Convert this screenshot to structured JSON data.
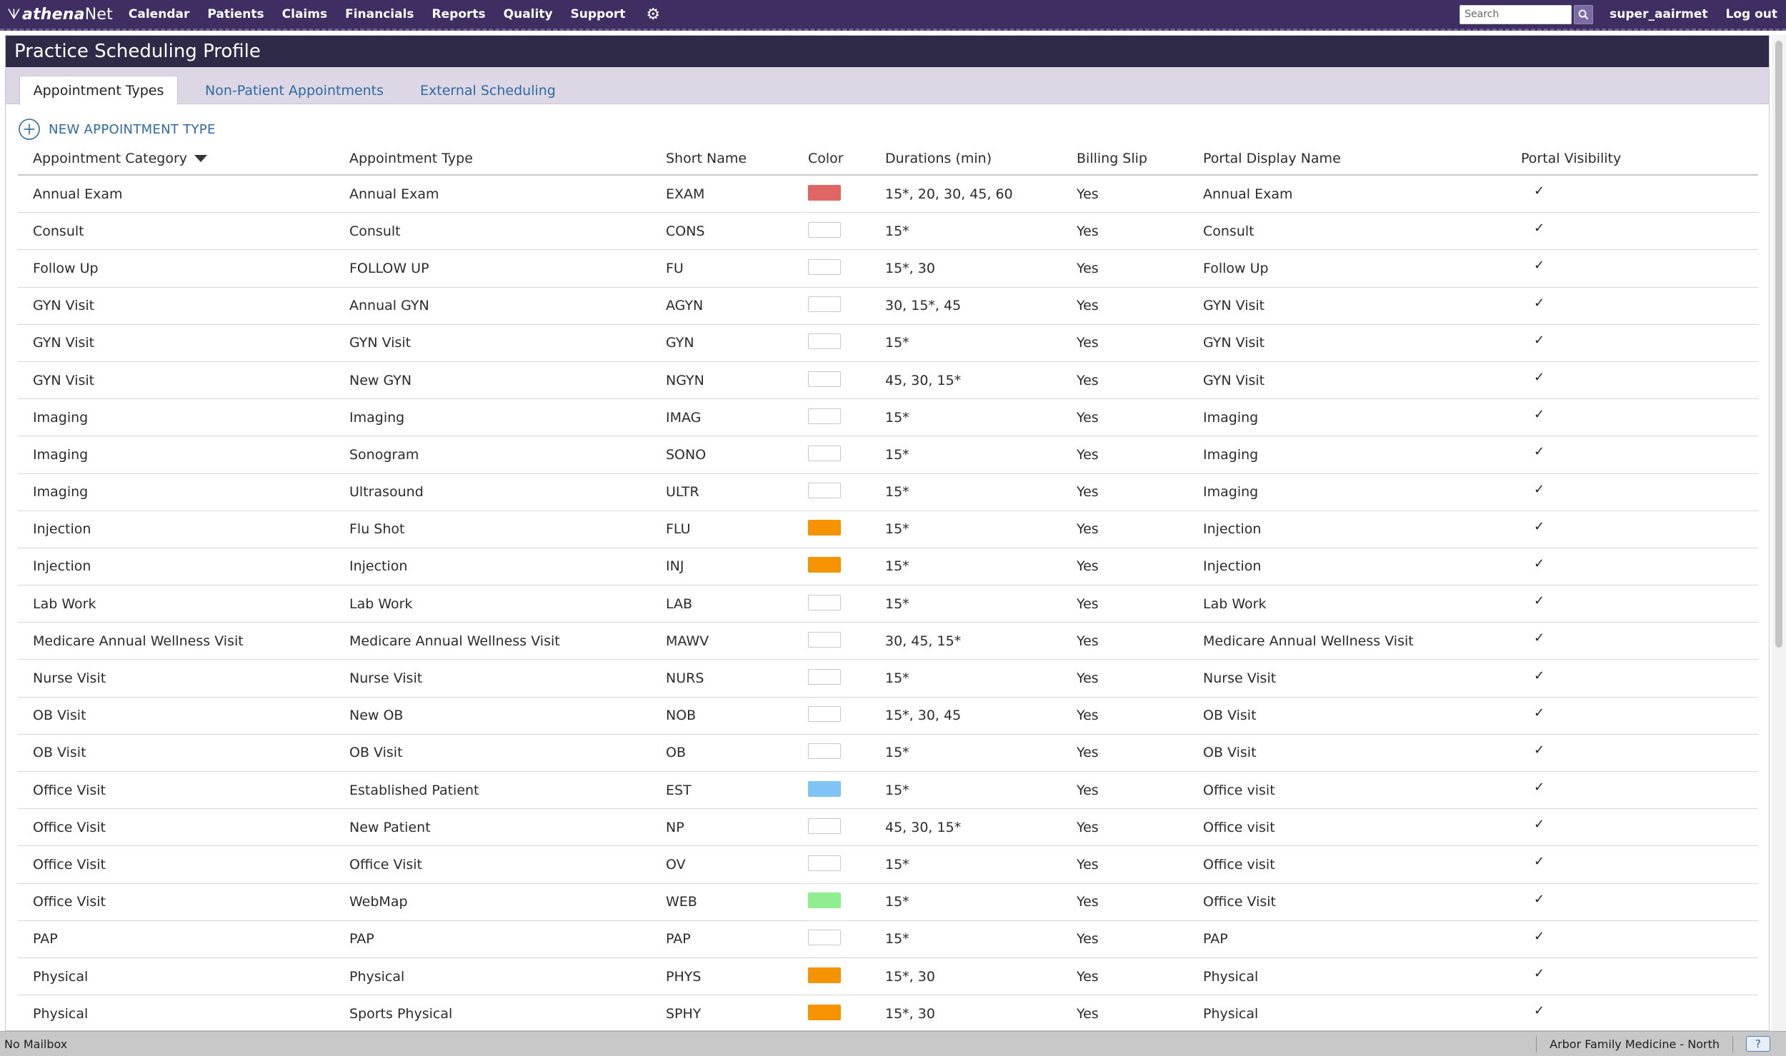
{
  "nav": {
    "logo_athena": "athena",
    "logo_net": "Net",
    "links": [
      "Calendar",
      "Patients",
      "Claims",
      "Financials",
      "Reports",
      "Quality",
      "Support"
    ],
    "search_placeholder": "Search",
    "username": "super_aairmet",
    "logout": "Log out"
  },
  "page": {
    "title": "Practice Scheduling Profile",
    "tabs": [
      "Appointment Types",
      "Non-Patient Appointments",
      "External Scheduling"
    ],
    "new_button": "NEW APPOINTMENT TYPE"
  },
  "table": {
    "headers": [
      "Appointment Category",
      "Appointment Type",
      "Short Name",
      "Color",
      "Durations (min)",
      "Billing Slip",
      "Portal Display Name",
      "Portal Visibility"
    ],
    "rows": [
      {
        "category": "Annual Exam",
        "type": "Annual Exam",
        "short": "EXAM",
        "color": "#e06666",
        "durations": "15*, 20, 30, 45, 60",
        "billing": "Yes",
        "portal_name": "Annual Exam",
        "visible": "✓"
      },
      {
        "category": "Consult",
        "type": "Consult",
        "short": "CONS",
        "color": "#ffffff",
        "durations": "15*",
        "billing": "Yes",
        "portal_name": "Consult",
        "visible": "✓"
      },
      {
        "category": "Follow Up",
        "type": "FOLLOW UP",
        "short": "FU",
        "color": "#ffffff",
        "durations": "15*, 30",
        "billing": "Yes",
        "portal_name": "Follow Up",
        "visible": "✓"
      },
      {
        "category": "GYN Visit",
        "type": "Annual GYN",
        "short": "AGYN",
        "color": "#ffffff",
        "durations": "30, 15*, 45",
        "billing": "Yes",
        "portal_name": "GYN Visit",
        "visible": "✓"
      },
      {
        "category": "GYN Visit",
        "type": "GYN Visit",
        "short": "GYN",
        "color": "#ffffff",
        "durations": "15*",
        "billing": "Yes",
        "portal_name": "GYN Visit",
        "visible": "✓"
      },
      {
        "category": "GYN Visit",
        "type": "New GYN",
        "short": "NGYN",
        "color": "#ffffff",
        "durations": "45, 30, 15*",
        "billing": "Yes",
        "portal_name": "GYN Visit",
        "visible": "✓"
      },
      {
        "category": "Imaging",
        "type": "Imaging",
        "short": "IMAG",
        "color": "#ffffff",
        "durations": "15*",
        "billing": "Yes",
        "portal_name": "Imaging",
        "visible": "✓"
      },
      {
        "category": "Imaging",
        "type": "Sonogram",
        "short": "SONO",
        "color": "#ffffff",
        "durations": "15*",
        "billing": "Yes",
        "portal_name": "Imaging",
        "visible": "✓"
      },
      {
        "category": "Imaging",
        "type": "Ultrasound",
        "short": "ULTR",
        "color": "#ffffff",
        "durations": "15*",
        "billing": "Yes",
        "portal_name": "Imaging",
        "visible": "✓"
      },
      {
        "category": "Injection",
        "type": "Flu Shot",
        "short": "FLU",
        "color": "#f59300",
        "durations": "15*",
        "billing": "Yes",
        "portal_name": "Injection",
        "visible": "✓"
      },
      {
        "category": "Injection",
        "type": "Injection",
        "short": "INJ",
        "color": "#f59300",
        "durations": "15*",
        "billing": "Yes",
        "portal_name": "Injection",
        "visible": "✓"
      },
      {
        "category": "Lab Work",
        "type": "Lab Work",
        "short": "LAB",
        "color": "#ffffff",
        "durations": "15*",
        "billing": "Yes",
        "portal_name": "Lab Work",
        "visible": "✓"
      },
      {
        "category": "Medicare Annual Wellness Visit",
        "type": "Medicare Annual Wellness Visit",
        "short": "MAWV",
        "color": "#ffffff",
        "durations": "30, 45, 15*",
        "billing": "Yes",
        "portal_name": "Medicare Annual Wellness Visit",
        "visible": "✓"
      },
      {
        "category": "Nurse Visit",
        "type": "Nurse Visit",
        "short": "NURS",
        "color": "#ffffff",
        "durations": "15*",
        "billing": "Yes",
        "portal_name": "Nurse Visit",
        "visible": "✓"
      },
      {
        "category": "OB Visit",
        "type": "New OB",
        "short": "NOB",
        "color": "#ffffff",
        "durations": "15*, 30, 45",
        "billing": "Yes",
        "portal_name": "OB Visit",
        "visible": "✓"
      },
      {
        "category": "OB Visit",
        "type": "OB Visit",
        "short": "OB",
        "color": "#ffffff",
        "durations": "15*",
        "billing": "Yes",
        "portal_name": "OB Visit",
        "visible": "✓"
      },
      {
        "category": "Office Visit",
        "type": "Established Patient",
        "short": "EST",
        "color": "#7fc4f5",
        "durations": "15*",
        "billing": "Yes",
        "portal_name": "Office visit",
        "visible": "✓"
      },
      {
        "category": "Office Visit",
        "type": "New Patient",
        "short": "NP",
        "color": "#ffffff",
        "durations": "45, 30, 15*",
        "billing": "Yes",
        "portal_name": "Office visit",
        "visible": "✓"
      },
      {
        "category": "Office Visit",
        "type": "Office Visit",
        "short": "OV",
        "color": "#ffffff",
        "durations": "15*",
        "billing": "Yes",
        "portal_name": "Office visit",
        "visible": "✓"
      },
      {
        "category": "Office Visit",
        "type": "WebMap",
        "short": "WEB",
        "color": "#90ee90",
        "durations": "15*",
        "billing": "Yes",
        "portal_name": "Office Visit",
        "visible": "✓"
      },
      {
        "category": "PAP",
        "type": "PAP",
        "short": "PAP",
        "color": "#ffffff",
        "durations": "15*",
        "billing": "Yes",
        "portal_name": "PAP",
        "visible": "✓"
      },
      {
        "category": "Physical",
        "type": "Physical",
        "short": "PHYS",
        "color": "#f59300",
        "durations": "15*, 30",
        "billing": "Yes",
        "portal_name": "Physical",
        "visible": "✓"
      },
      {
        "category": "Physical",
        "type": "Sports Physical",
        "short": "SPHY",
        "color": "#f59300",
        "durations": "15*, 30",
        "billing": "Yes",
        "portal_name": "Physical",
        "visible": "✓"
      }
    ]
  },
  "status": {
    "mailbox": "No Mailbox",
    "practice": "Arbor Family Medicine - North",
    "help": "?"
  }
}
